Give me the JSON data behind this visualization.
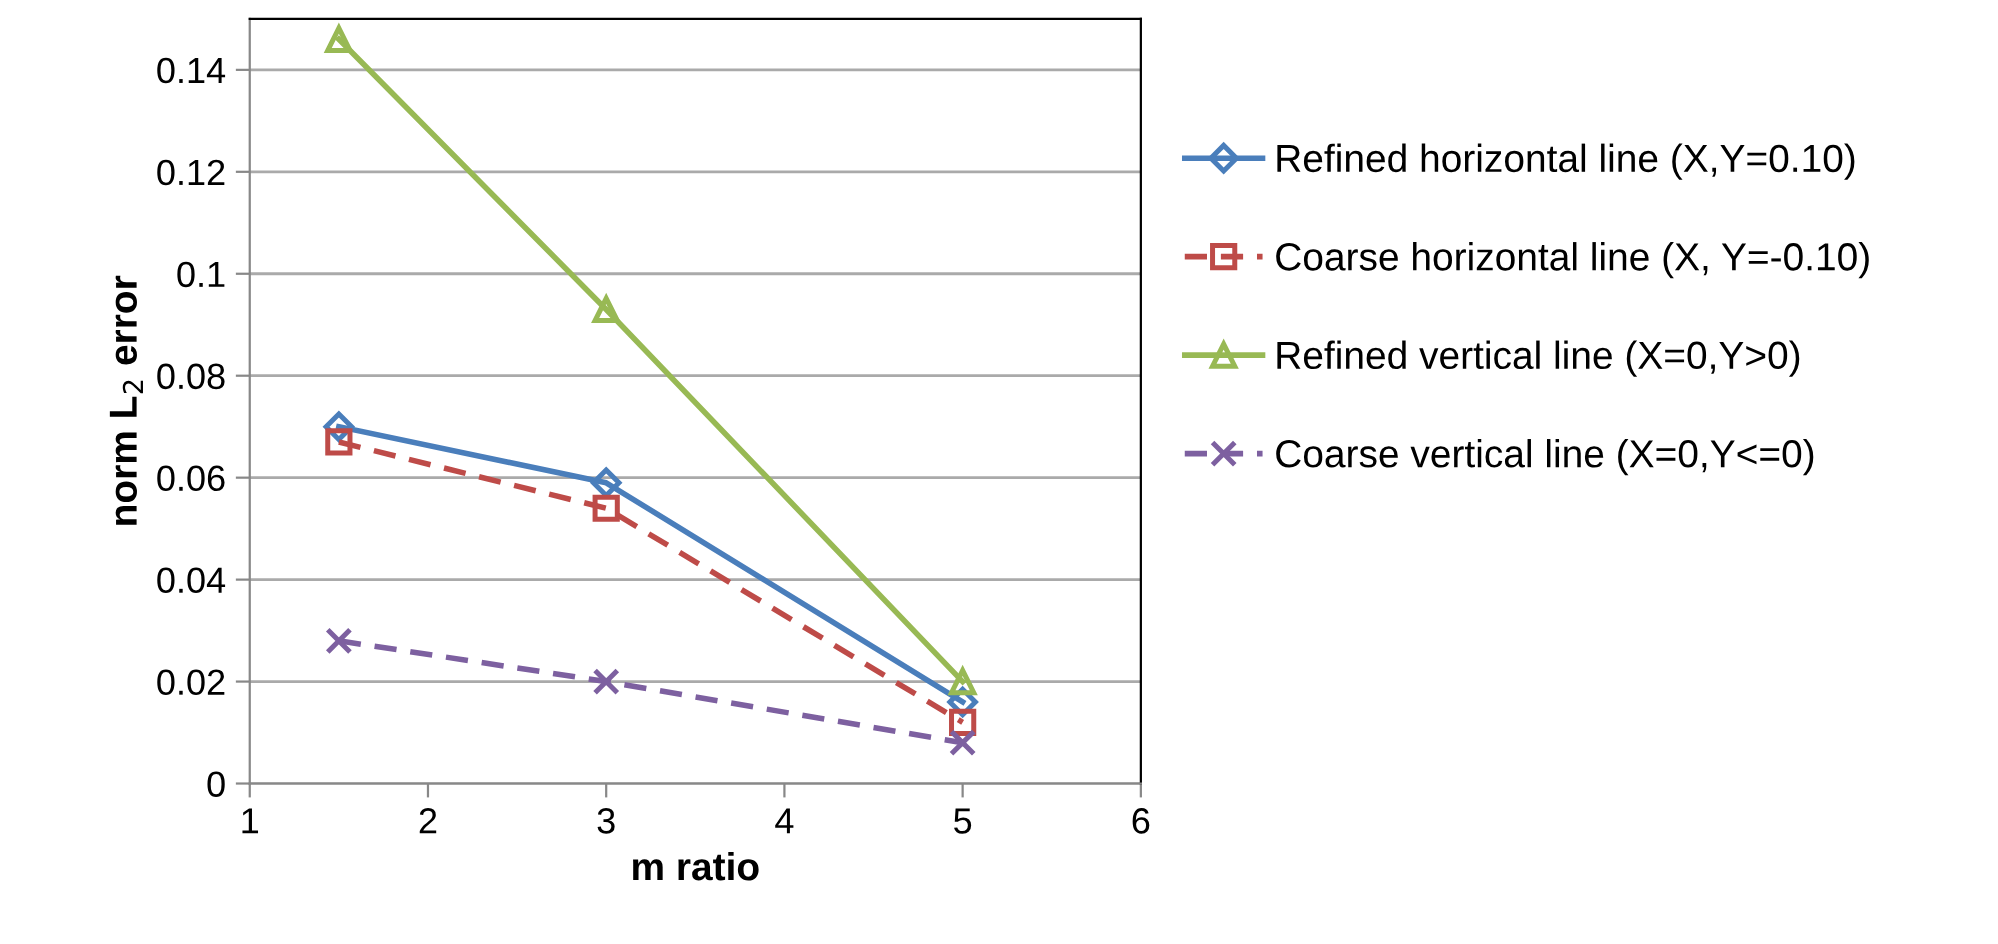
{
  "chart_data": {
    "type": "line",
    "xlabel": "m ratio",
    "ylabel": "norm L$_{2}$ error",
    "x": [
      1.5,
      3,
      5
    ],
    "series": [
      {
        "name": "Refined horizontal line (X,Y=0.10)",
        "color": "#4a7ebb",
        "values": [
          0.07,
          0.059,
          0.016
        ],
        "marker": "diamond",
        "line_style": "solid"
      },
      {
        "name": "Coarse horizontal line (X, Y=-0.10)",
        "color": "#be4b48",
        "values": [
          0.067,
          0.054,
          0.012
        ],
        "marker": "square",
        "line_style": "dashed"
      },
      {
        "name": "Refined vertical line (X=0,Y>0)",
        "color": "#98b954",
        "values": [
          0.146,
          0.093,
          0.02
        ],
        "marker": "triangle",
        "line_style": "solid"
      },
      {
        "name": "Coarse vertical line (X=0,Y<=0)",
        "color": "#7d60a0",
        "values": [
          0.028,
          0.02,
          0.008
        ],
        "marker": "cross",
        "line_style": "dashed"
      }
    ],
    "xlim": [
      1,
      6
    ],
    "ylim": [
      0,
      0.15
    ],
    "xticks": [
      1,
      2,
      3,
      4,
      5,
      6
    ],
    "yticks": [
      0,
      0.02,
      0.04,
      0.06,
      0.08,
      0.1,
      0.12,
      0.14
    ],
    "grid": "y",
    "legend": "right"
  }
}
